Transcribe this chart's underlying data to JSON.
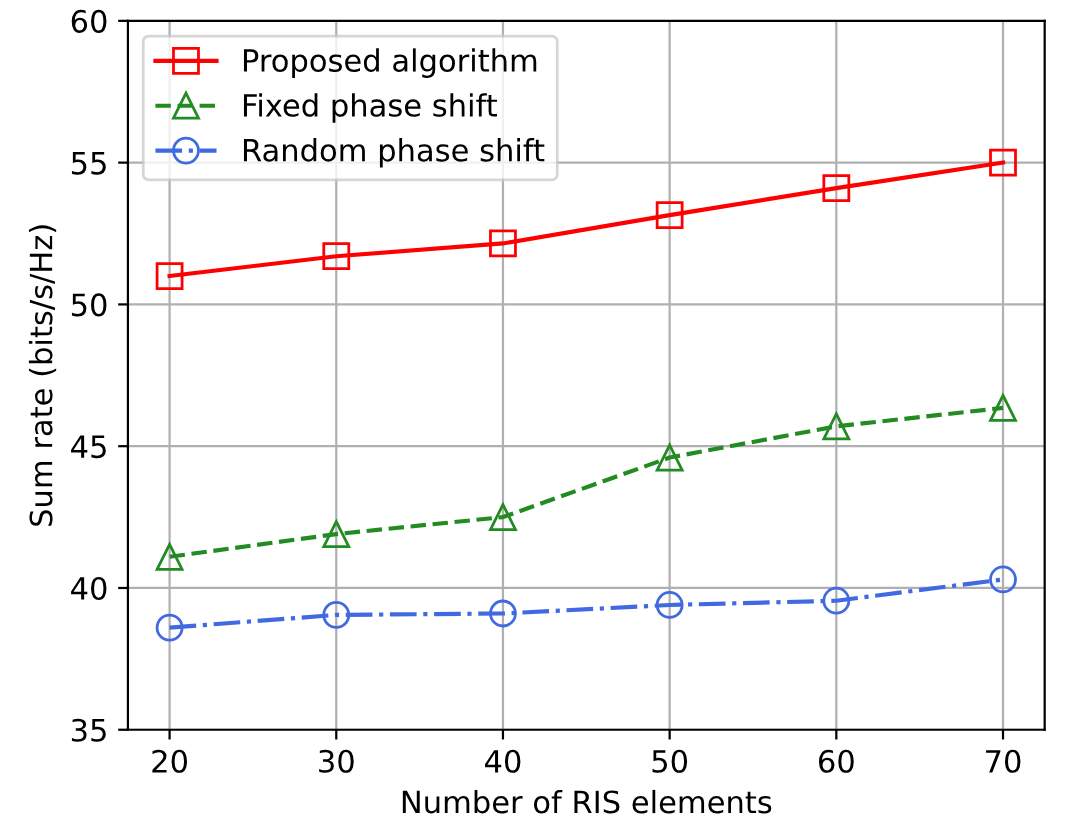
{
  "chart_data": {
    "type": "line",
    "xlabel": "Number of RIS elements",
    "ylabel": "Sum rate (bits/s/Hz)",
    "x": [
      20,
      30,
      40,
      50,
      60,
      70
    ],
    "series": [
      {
        "name": "Proposed algorithm",
        "color": "#ff0000",
        "marker": "square",
        "line_style": "solid",
        "values": [
          51.0,
          51.7,
          52.15,
          53.15,
          54.1,
          55.0
        ]
      },
      {
        "name": "Fixed phase shift",
        "color": "#228b22",
        "marker": "triangle",
        "line_style": "dashed",
        "values": [
          41.1,
          41.9,
          42.5,
          44.6,
          45.7,
          46.35
        ]
      },
      {
        "name": "Random phase shift",
        "color": "#4169e1",
        "marker": "circle",
        "line_style": "dashdot",
        "values": [
          38.6,
          39.05,
          39.1,
          39.4,
          39.55,
          40.3
        ]
      }
    ],
    "xlim": [
      17.5,
      72.5
    ],
    "ylim": [
      35,
      60
    ],
    "xticks": [
      20,
      30,
      40,
      50,
      60,
      70
    ],
    "yticks": [
      35,
      40,
      45,
      50,
      55,
      60
    ],
    "grid": true,
    "legend": "top left"
  }
}
